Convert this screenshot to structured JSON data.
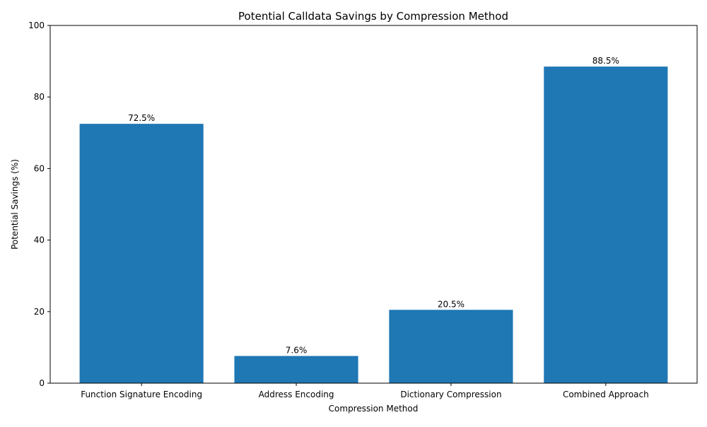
{
  "chart_data": {
    "type": "bar",
    "title": "Potential Calldata Savings by Compression Method",
    "xlabel": "Compression Method",
    "ylabel": "Potential Savings (%)",
    "categories": [
      "Function Signature Encoding",
      "Address Encoding",
      "Dictionary Compression",
      "Combined Approach"
    ],
    "values": [
      72.5,
      7.6,
      20.5,
      88.5
    ],
    "value_labels": [
      "72.5%",
      "7.6%",
      "20.5%",
      "88.5%"
    ],
    "ylim": [
      0,
      100
    ],
    "yticks": [
      0,
      20,
      40,
      60,
      80,
      100
    ],
    "grid": false,
    "legend": "none",
    "bar_color": "#1f77b4"
  }
}
